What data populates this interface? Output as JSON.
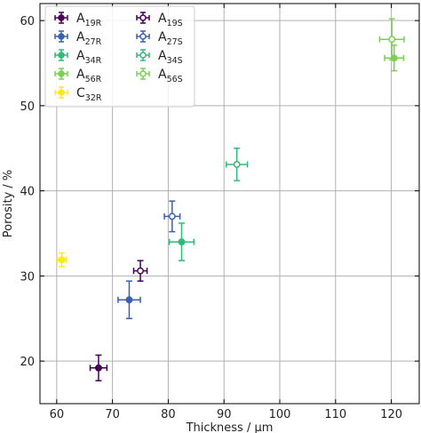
{
  "chart_data": {
    "type": "scatter",
    "xlabel": "Thickness / µm",
    "ylabel": "Porosity / %",
    "xlim": [
      57,
      125
    ],
    "ylim": [
      15,
      62
    ],
    "xticks": [
      60,
      70,
      80,
      90,
      100,
      110,
      120
    ],
    "yticks": [
      20,
      30,
      40,
      50,
      60
    ],
    "grid": true,
    "error_bars": true,
    "legend": {
      "placement": "top-left",
      "columns": 2
    },
    "series": [
      {
        "main": "A",
        "sub": "19R",
        "color": "#440154",
        "filled": true,
        "points": [
          {
            "x": 67.5,
            "y": 19.2,
            "xerr": 1.5,
            "yerr": 1.5
          }
        ]
      },
      {
        "main": "A",
        "sub": "27R",
        "color": "#3b5fb0",
        "filled": true,
        "points": [
          {
            "x": 73.0,
            "y": 27.2,
            "xerr": 2.0,
            "yerr": 2.2
          }
        ]
      },
      {
        "main": "A",
        "sub": "34R",
        "color": "#35b779",
        "filled": true,
        "points": [
          {
            "x": 82.4,
            "y": 34.0,
            "xerr": 2.2,
            "yerr": 2.2
          }
        ]
      },
      {
        "main": "A",
        "sub": "56R",
        "color": "#7ad151",
        "filled": true,
        "points": [
          {
            "x": 120.5,
            "y": 55.6,
            "xerr": 1.7,
            "yerr": 1.5
          }
        ]
      },
      {
        "main": "C",
        "sub": "32R",
        "color": "#fde725",
        "filled": true,
        "points": [
          {
            "x": 60.9,
            "y": 31.9,
            "xerr": 0.8,
            "yerr": 0.8
          }
        ]
      },
      {
        "main": "A",
        "sub": "19S",
        "color": "#440154",
        "filled": false,
        "points": [
          {
            "x": 75.0,
            "y": 30.6,
            "xerr": 1.2,
            "yerr": 1.2
          }
        ]
      },
      {
        "main": "A",
        "sub": "27S",
        "color": "#3b5fb0",
        "filled": false,
        "points": [
          {
            "x": 80.7,
            "y": 37.0,
            "xerr": 1.4,
            "yerr": 1.8
          }
        ]
      },
      {
        "main": "A",
        "sub": "34S",
        "color": "#35b779",
        "filled": false,
        "points": [
          {
            "x": 92.3,
            "y": 43.1,
            "xerr": 1.9,
            "yerr": 1.9
          }
        ]
      },
      {
        "main": "A",
        "sub": "56S",
        "color": "#7ad151",
        "filled": false,
        "points": [
          {
            "x": 120.1,
            "y": 57.8,
            "xerr": 2.2,
            "yerr": 2.4
          }
        ]
      }
    ]
  }
}
